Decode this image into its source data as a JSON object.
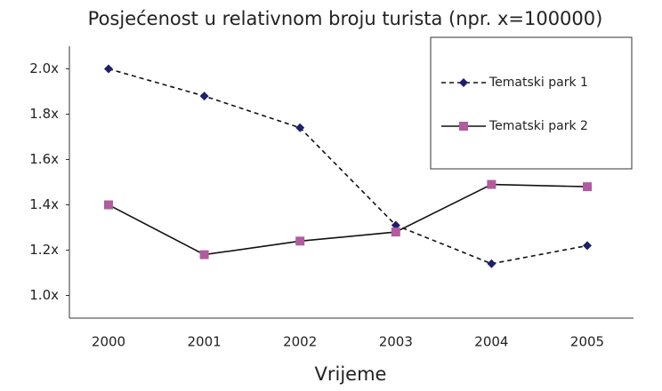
{
  "chart_data": {
    "type": "line",
    "title": "Posjećenost u relativnom broju turista (npr. x=100000)",
    "x_label": "Vrijeme",
    "categories": [
      "2000",
      "2001",
      "2002",
      "2003",
      "2004",
      "2005"
    ],
    "series": [
      {
        "name": "Tematski park 1",
        "color": "#1f1f6e",
        "line_style": "dashed",
        "marker": "diamond",
        "values": [
          2.0,
          1.88,
          1.74,
          1.31,
          1.14,
          1.22
        ]
      },
      {
        "name": "Tematski park 2",
        "color": "#b05c9e",
        "line_style": "solid",
        "marker": "square",
        "values": [
          1.4,
          1.18,
          1.24,
          1.28,
          1.49,
          1.48
        ]
      }
    ],
    "ylim": [
      0.9,
      2.1
    ],
    "yticks": [
      {
        "value": 1.0,
        "label": "1.0x"
      },
      {
        "value": 1.2,
        "label": "1.2x"
      },
      {
        "value": 1.4,
        "label": "1.4x"
      },
      {
        "value": 1.6,
        "label": "1.6x"
      },
      {
        "value": 1.8,
        "label": "1.8x"
      },
      {
        "value": 2.0,
        "label": "2.0x"
      }
    ],
    "grid": false,
    "legend": "upper right"
  }
}
